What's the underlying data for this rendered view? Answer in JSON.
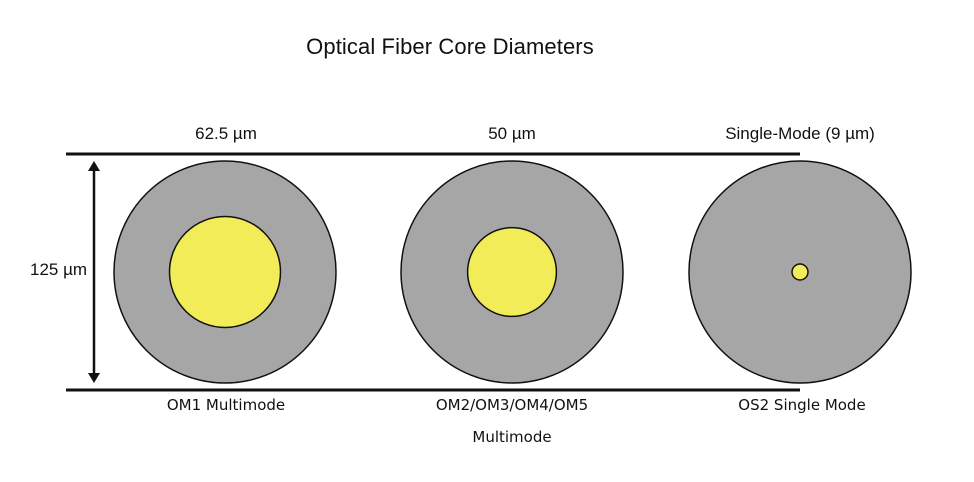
{
  "title": "Optical Fiber Core Diameters",
  "cladding_label": "125 µm",
  "colors": {
    "cladding": "#a6a6a6",
    "core": "#f2ec58",
    "outline": "#111111",
    "line": "#111111"
  },
  "fibers": [
    {
      "top_label": "62.5 µm",
      "bottom_label": "OM1 Multimode",
      "bottom_label_line2": "",
      "core_um": 62.5,
      "cladding_um": 125
    },
    {
      "top_label": "50 µm",
      "bottom_label": "OM2/OM3/OM4/OM5",
      "bottom_label_line2": "Multimode",
      "core_um": 50,
      "cladding_um": 125
    },
    {
      "top_label": "Single-Mode (9 µm)",
      "bottom_label": "OS2 Single Mode",
      "bottom_label_line2": "",
      "core_um": 9,
      "cladding_um": 125
    }
  ]
}
